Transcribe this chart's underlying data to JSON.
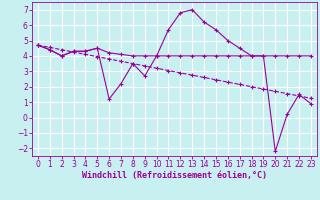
{
  "xlabel": "Windchill (Refroidissement éolien,°C)",
  "bg_color": "#c8f0f0",
  "line_color": "#990099",
  "grid_color": "#ffffff",
  "x_hours": [
    0,
    1,
    2,
    3,
    4,
    5,
    6,
    7,
    8,
    9,
    10,
    11,
    12,
    13,
    14,
    15,
    16,
    17,
    18,
    19,
    20,
    21,
    22,
    23
  ],
  "y_zigzag": [
    4.7,
    4.4,
    4.0,
    4.3,
    4.3,
    4.5,
    1.2,
    2.2,
    3.5,
    2.7,
    4.0,
    5.7,
    6.8,
    7.0,
    6.2,
    5.7,
    5.0,
    4.5,
    4.0,
    4.0,
    -2.2,
    0.2,
    1.5,
    0.9
  ],
  "y_flat": [
    4.7,
    4.4,
    4.0,
    4.3,
    4.3,
    4.5,
    4.2,
    4.1,
    4.0,
    4.0,
    4.0,
    4.0,
    4.0,
    4.0,
    4.0,
    4.0,
    4.0,
    4.0,
    4.0,
    4.0,
    4.0,
    4.0,
    4.0,
    4.0
  ],
  "y_linear": [
    4.7,
    4.55,
    4.4,
    4.25,
    4.1,
    3.95,
    3.8,
    3.65,
    3.5,
    3.35,
    3.2,
    3.05,
    2.9,
    2.75,
    2.6,
    2.45,
    2.3,
    2.15,
    2.0,
    1.85,
    1.7,
    1.55,
    1.4,
    1.25
  ],
  "ylim": [
    -2.5,
    7.5
  ],
  "yticks": [
    -2,
    -1,
    0,
    1,
    2,
    3,
    4,
    5,
    6,
    7
  ],
  "xticks": [
    0,
    1,
    2,
    3,
    4,
    5,
    6,
    7,
    8,
    9,
    10,
    11,
    12,
    13,
    14,
    15,
    16,
    17,
    18,
    19,
    20,
    21,
    22,
    23
  ],
  "tick_fontsize": 5.5,
  "xlabel_fontsize": 6.0,
  "marker_size": 3,
  "linewidth": 0.8
}
